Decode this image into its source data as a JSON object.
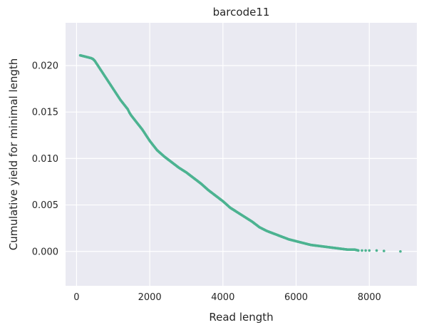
{
  "chart_data": {
    "type": "scatter",
    "title": "barcode11",
    "xlabel": "Read length",
    "ylabel": "Cumulative yield for minimal length",
    "xlim": [
      -300,
      9300
    ],
    "ylim": [
      -0.0037,
      0.0246
    ],
    "xticks": [
      0,
      2000,
      4000,
      6000,
      8000
    ],
    "xtick_labels": [
      "0",
      "2000",
      "4000",
      "6000",
      "8000"
    ],
    "yticks": [
      0.0,
      0.005,
      0.01,
      0.015,
      0.02
    ],
    "ytick_labels": [
      "0.000",
      "0.005",
      "0.010",
      "0.015",
      "0.020"
    ],
    "grid": true,
    "background": "#eaeaf2",
    "point_color": "#4cb391",
    "series": [
      {
        "x": [
          100,
          200,
          300,
          400,
          450,
          500,
          550,
          600,
          700,
          800,
          900,
          1000,
          1100,
          1200,
          1300,
          1400,
          1450,
          1500,
          1600,
          1700,
          1800,
          1900,
          2000,
          2100,
          2200,
          2400,
          2600,
          2800,
          3000,
          3200,
          3400,
          3600,
          3800,
          4000,
          4200,
          4400,
          4600,
          4800,
          5000,
          5200,
          5400,
          5600,
          5800,
          6000,
          6200,
          6400,
          6600,
          6800,
          7000,
          7200,
          7400,
          7600,
          7700,
          7800,
          7900,
          8000,
          8200,
          8400,
          8850
        ],
        "y": [
          0.0211,
          0.021,
          0.0209,
          0.0208,
          0.0207,
          0.0205,
          0.0202,
          0.0199,
          0.0193,
          0.0187,
          0.0181,
          0.0175,
          0.0169,
          0.0163,
          0.0158,
          0.0153,
          0.0149,
          0.0146,
          0.0141,
          0.0136,
          0.0131,
          0.0125,
          0.0119,
          0.0114,
          0.0109,
          0.0102,
          0.0096,
          0.009,
          0.0085,
          0.0079,
          0.0073,
          0.0066,
          0.006,
          0.0054,
          0.0047,
          0.0042,
          0.0037,
          0.0032,
          0.0026,
          0.0022,
          0.0019,
          0.0016,
          0.0013,
          0.0011,
          0.0009,
          0.0007,
          0.0006,
          0.0005,
          0.0004,
          0.0003,
          0.0002,
          0.0002,
          0.0001,
          0.0001,
          0.0001,
          0.0001,
          0.0001,
          5e-05,
          0.0
        ]
      }
    ]
  }
}
